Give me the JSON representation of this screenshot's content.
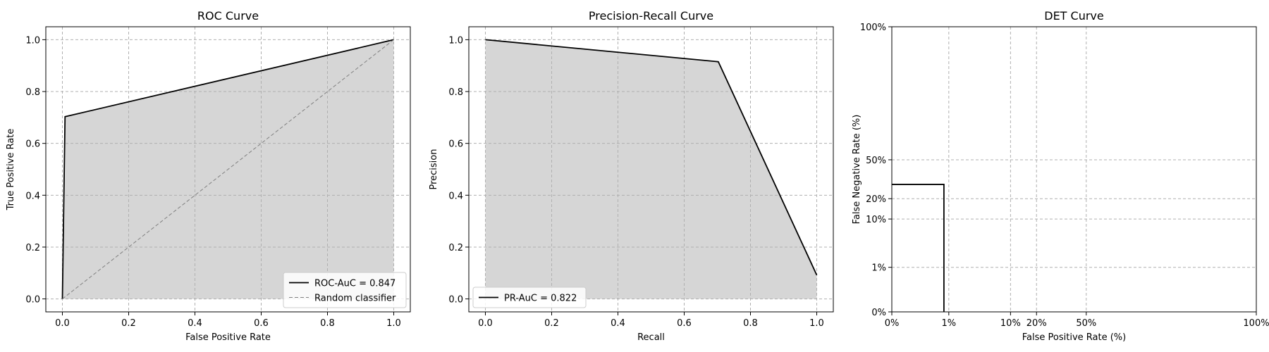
{
  "chart_data": [
    {
      "type": "area",
      "title": "ROC Curve",
      "xlabel": "False Positive Rate",
      "ylabel": "True Positive Rate",
      "xlim": [
        -0.05,
        1.05
      ],
      "ylim": [
        -0.05,
        1.05
      ],
      "xticks": [
        0.0,
        0.2,
        0.4,
        0.6,
        0.8,
        1.0
      ],
      "yticks": [
        0.0,
        0.2,
        0.4,
        0.6,
        0.8,
        1.0
      ],
      "tick_labels_x": [
        "0.0",
        "0.2",
        "0.4",
        "0.6",
        "0.8",
        "1.0"
      ],
      "tick_labels_y": [
        "0.0",
        "0.2",
        "0.4",
        "0.6",
        "0.8",
        "1.0"
      ],
      "grid": true,
      "legend_position": "lower-right",
      "series": [
        {
          "name": "ROC-AuC = 0.847",
          "color": "#000000",
          "style": "solid",
          "fill": "#d6d6d6",
          "x": [
            0.0,
            0.008,
            1.0
          ],
          "y": [
            0.0,
            0.703,
            1.0
          ]
        },
        {
          "name": "Random classifier",
          "color": "#808080",
          "style": "dashed",
          "x": [
            0.0,
            1.0
          ],
          "y": [
            0.0,
            1.0
          ]
        }
      ]
    },
    {
      "type": "area",
      "title": "Precision-Recall Curve",
      "xlabel": "Recall",
      "ylabel": "Precision",
      "xlim": [
        -0.05,
        1.05
      ],
      "ylim": [
        -0.05,
        1.05
      ],
      "xticks": [
        0.0,
        0.2,
        0.4,
        0.6,
        0.8,
        1.0
      ],
      "yticks": [
        0.0,
        0.2,
        0.4,
        0.6,
        0.8,
        1.0
      ],
      "tick_labels_x": [
        "0.0",
        "0.2",
        "0.4",
        "0.6",
        "0.8",
        "1.0"
      ],
      "tick_labels_y": [
        "0.0",
        "0.2",
        "0.4",
        "0.6",
        "0.8",
        "1.0"
      ],
      "grid": true,
      "legend_position": "lower-left",
      "series": [
        {
          "name": "PR-AuC = 0.822",
          "color": "#000000",
          "style": "solid",
          "fill": "#d6d6d6",
          "x": [
            0.0,
            0.703,
            1.0
          ],
          "y": [
            1.0,
            0.915,
            0.092
          ]
        }
      ]
    },
    {
      "type": "line",
      "title": "DET Curve",
      "xlabel": "False Positive Rate (%)",
      "ylabel": "False Negative Rate (%)",
      "scale": "normal-deviate",
      "xlim": [
        0.0,
        1.0
      ],
      "ylim": [
        0.0,
        1.0
      ],
      "xticks": [
        0.0,
        0.01,
        0.1,
        0.2,
        0.5,
        1.0
      ],
      "yticks": [
        0.0,
        0.01,
        0.1,
        0.2,
        0.5,
        1.0
      ],
      "tick_labels_x": [
        "0%",
        "1%",
        "10%",
        "20%",
        "50%",
        "100%"
      ],
      "tick_labels_y": [
        "0%",
        "1%",
        "10%",
        "20%",
        "50%",
        "100%"
      ],
      "grid": true,
      "series": [
        {
          "color": "#000000",
          "style": "solid",
          "x": [
            0.0,
            0.008,
            0.008
          ],
          "y": [
            0.297,
            0.297,
            0.0
          ]
        }
      ]
    }
  ]
}
